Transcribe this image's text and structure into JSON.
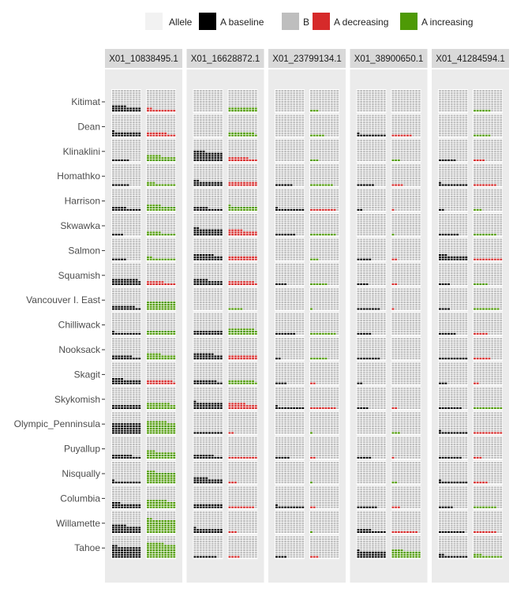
{
  "chart_data": {
    "type": "waffle",
    "legend": {
      "title": "Allele",
      "placement": "top",
      "entries": [
        {
          "label": "A baseline",
          "color": "#000000"
        },
        {
          "label": "B",
          "color": "#bebebe"
        },
        {
          "label": "A decreasing",
          "color": "#d62a2a"
        },
        {
          "label": "A increasing",
          "color": "#4e9a06"
        }
      ]
    },
    "cells_per_waffle": 100,
    "loci": [
      "X01_10838495.1",
      "X01_16628872.1",
      "X01_23799134.1",
      "X01_38900650.1",
      "X01_41284594.1"
    ],
    "populations": [
      "Kitimat",
      "Dean",
      "Klinaklini",
      "Homathko",
      "Harrison",
      "Skwawka",
      "Salmon",
      "Squamish",
      "Vancouver I. East",
      "Chilliwack",
      "Nooksack",
      "Skagit",
      "Skykomish",
      "Olympic_Penninsula",
      "Puyallup",
      "Nisqually",
      "Columbia",
      "Willamette",
      "Tahoe"
    ],
    "baseline_A": [
      [
        25,
        0,
        0,
        0,
        0
      ],
      [
        21,
        0,
        0,
        11,
        0
      ],
      [
        6,
        44,
        0,
        0,
        6
      ],
      [
        6,
        22,
        6,
        6,
        11
      ],
      [
        15,
        15,
        11,
        2,
        2
      ],
      [
        4,
        32,
        7,
        0,
        7
      ],
      [
        5,
        27,
        0,
        5,
        23
      ],
      [
        29,
        25,
        4,
        4,
        4
      ],
      [
        18,
        0,
        0,
        8,
        4
      ],
      [
        11,
        20,
        7,
        5,
        6
      ],
      [
        17,
        27,
        2,
        8,
        10
      ],
      [
        24,
        18,
        4,
        2,
        3
      ],
      [
        20,
        31,
        11,
        4,
        8
      ],
      [
        50,
        10,
        0,
        0,
        11
      ],
      [
        17,
        17,
        5,
        5,
        8
      ],
      [
        11,
        25,
        0,
        0,
        11
      ],
      [
        23,
        20,
        11,
        7,
        5
      ],
      [
        35,
        21,
        0,
        15,
        9
      ],
      [
        52,
        8,
        4,
        31,
        12
      ]
    ],
    "current_A": [
      [
        12,
        20,
        3,
        0,
        6
      ],
      [
        17,
        19,
        5,
        7,
        6
      ],
      [
        25,
        17,
        3,
        3,
        4
      ],
      [
        13,
        20,
        8,
        4,
        8
      ],
      [
        25,
        21,
        9,
        1,
        3
      ],
      [
        15,
        25,
        9,
        1,
        8
      ],
      [
        12,
        20,
        3,
        2,
        10
      ],
      [
        16,
        19,
        6,
        2,
        5
      ],
      [
        40,
        5,
        1,
        1,
        9
      ],
      [
        20,
        29,
        9,
        0,
        5
      ],
      [
        25,
        20,
        6,
        0,
        6
      ],
      [
        19,
        19,
        2,
        0,
        2
      ],
      [
        28,
        26,
        9,
        2,
        10
      ],
      [
        57,
        2,
        1,
        3,
        10
      ],
      [
        33,
        10,
        2,
        1,
        3
      ],
      [
        53,
        3,
        1,
        2,
        5
      ],
      [
        37,
        9,
        2,
        3,
        8
      ],
      [
        62,
        3,
        1,
        9,
        8
      ],
      [
        66,
        4,
        3,
        34,
        13
      ]
    ]
  }
}
